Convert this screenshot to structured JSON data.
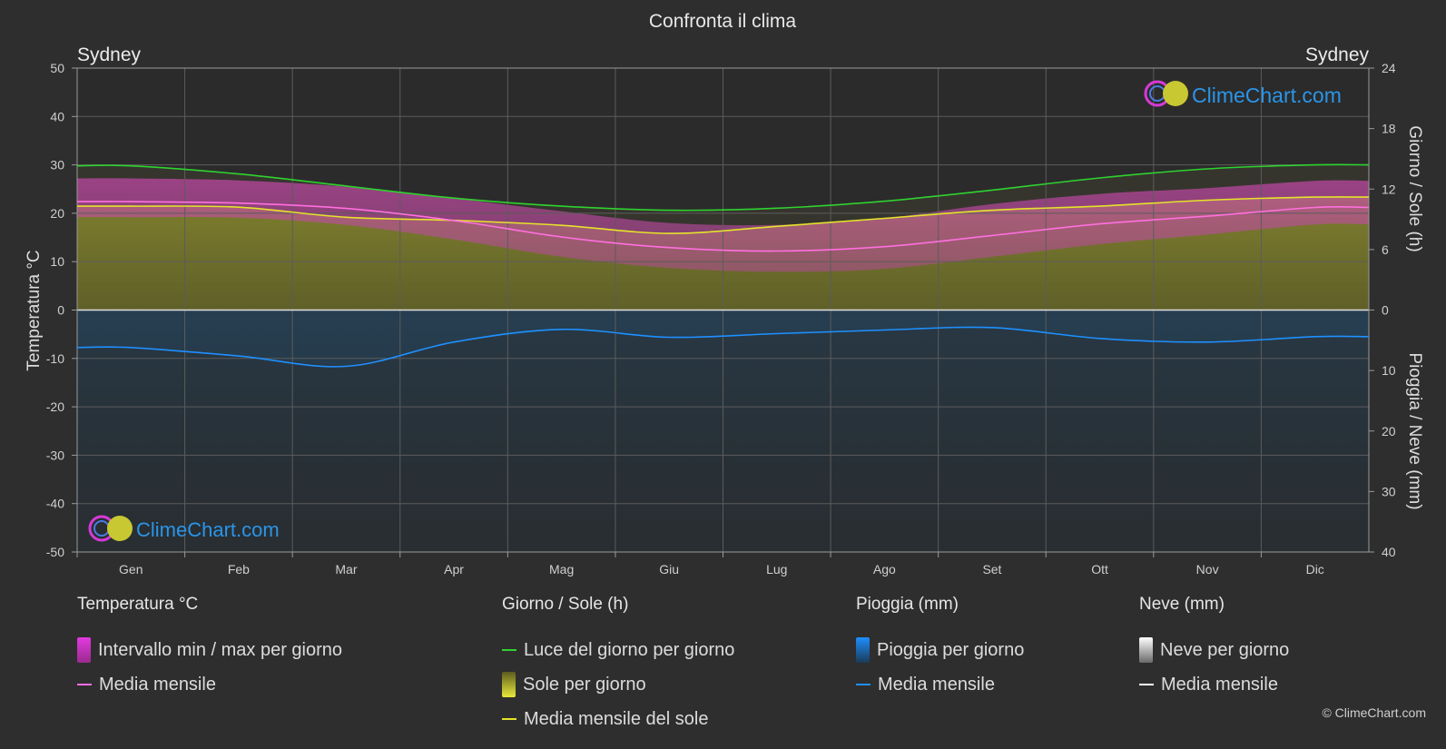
{
  "chart_title": "Confronta il clima",
  "city_left": "Sydney",
  "city_right": "Sydney",
  "watermark": "ClimeChart.com",
  "copyright": "© ClimeChart.com",
  "colors": {
    "background": "#2e2e2e",
    "daylight": "#2fd22f",
    "sunshine_line": "#e4e42a",
    "sunshine_fill": "#9a9a2a",
    "temp_line": "#ff6fe0",
    "temp_fill": "#c94aa8",
    "rain_line": "#1e90ff",
    "rain_fill": "#1c4f7a",
    "snow_line": "#ffffff",
    "brand": "#2196f3"
  },
  "legend": {
    "temperature": {
      "title": "Temperatura °C",
      "items": [
        "Intervallo min / max per giorno",
        "Media mensile"
      ]
    },
    "sun": {
      "title": "Giorno / Sole (h)",
      "items": [
        "Luce del giorno per giorno",
        "Sole per giorno",
        "Media mensile del sole"
      ]
    },
    "rain": {
      "title": "Pioggia (mm)",
      "items": [
        "Pioggia per giorno",
        "Media mensile"
      ]
    },
    "snow": {
      "title": "Neve (mm)",
      "items": [
        "Neve per giorno",
        "Media mensile"
      ]
    }
  },
  "chart_data": {
    "type": "line",
    "title": "Confronta il clima",
    "months": [
      "Gen",
      "Feb",
      "Mar",
      "Apr",
      "Mag",
      "Giu",
      "Lug",
      "Ago",
      "Set",
      "Ott",
      "Nov",
      "Dic"
    ],
    "axes": {
      "left": {
        "label": "Temperatura °C",
        "range": [
          -50,
          50
        ],
        "ticks": [
          50,
          40,
          30,
          20,
          10,
          0,
          -10,
          -20,
          -30,
          -40,
          -50
        ]
      },
      "right_top": {
        "label": "Giorno / Sole (h)",
        "range": [
          0,
          24
        ],
        "ticks": [
          24,
          18,
          12,
          6,
          0
        ]
      },
      "right_bottom": {
        "label": "Pioggia / Neve (mm)",
        "range": [
          0,
          40
        ],
        "ticks": [
          0,
          10,
          20,
          30,
          40
        ]
      }
    },
    "grid": true,
    "series": [
      {
        "name": "Luce del giorno per giorno",
        "axis": "right_top",
        "unit": "h",
        "values": [
          14.3,
          13.5,
          12.3,
          11.1,
          10.3,
          9.9,
          10.1,
          10.8,
          11.9,
          13.1,
          14.0,
          14.4
        ]
      },
      {
        "name": "Media mensile del sole",
        "axis": "right_top",
        "unit": "h",
        "values": [
          10.3,
          10.2,
          9.2,
          8.9,
          8.4,
          7.6,
          8.3,
          9.1,
          9.9,
          10.3,
          10.9,
          11.2
        ]
      },
      {
        "name": "Temperatura media mensile",
        "axis": "left",
        "unit": "°C",
        "values": [
          22.4,
          22.1,
          21.0,
          18.5,
          15.1,
          12.9,
          12.2,
          13.1,
          15.4,
          17.8,
          19.4,
          21.2
        ]
      },
      {
        "name": "Pioggia media mensile",
        "axis": "right_bottom",
        "unit": "mm",
        "values": [
          6.2,
          7.6,
          9.3,
          5.3,
          3.2,
          4.5,
          3.9,
          3.3,
          2.9,
          4.7,
          5.3,
          4.4
        ]
      }
    ],
    "temperature_band": {
      "name": "Intervallo min / max per giorno",
      "min": [
        19.2,
        19.1,
        17.6,
        14.6,
        11.0,
        8.7,
        7.9,
        8.5,
        11.0,
        13.6,
        15.6,
        17.7
      ],
      "max": [
        27.2,
        26.8,
        25.5,
        23.1,
        20.4,
        18.0,
        17.6,
        19.0,
        21.9,
        24.0,
        25.2,
        26.7
      ]
    }
  }
}
